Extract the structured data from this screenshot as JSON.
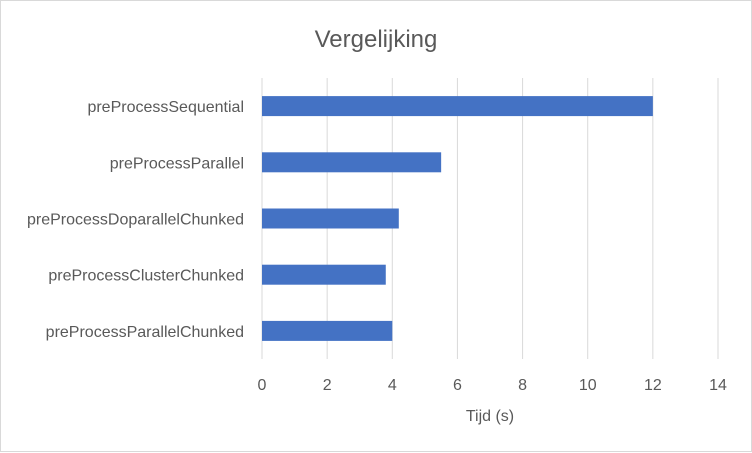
{
  "chart_data": {
    "type": "bar",
    "orientation": "horizontal",
    "title": "Vergelijking",
    "xlabel": "Tijd (s)",
    "ylabel": "",
    "categories": [
      "preProcessSequential",
      "preProcessParallel",
      "preProcessDoparallelChunked",
      "preProcessClusterChunked",
      "preProcessParallelChunked"
    ],
    "values": [
      12.0,
      5.5,
      4.2,
      3.8,
      4.0
    ],
    "xlim": [
      0,
      14
    ],
    "xticks": [
      "0",
      "2",
      "4",
      "6",
      "8",
      "10",
      "12",
      "14"
    ],
    "grid": true,
    "legend": "none",
    "colors": {
      "bar": "#4472c4",
      "grid": "#d9d9d9",
      "text": "#595959"
    }
  }
}
